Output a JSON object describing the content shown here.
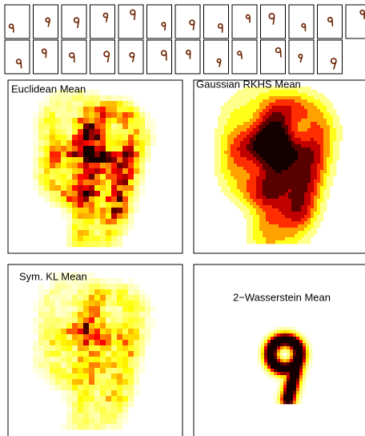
{
  "panels": [
    {
      "title": "Euclidean Mean"
    },
    {
      "title": "Gaussian RKHS Mean"
    },
    {
      "title": "Sym. KL Mean"
    },
    {
      "title": "2−Wasserstein Mean"
    }
  ]
}
